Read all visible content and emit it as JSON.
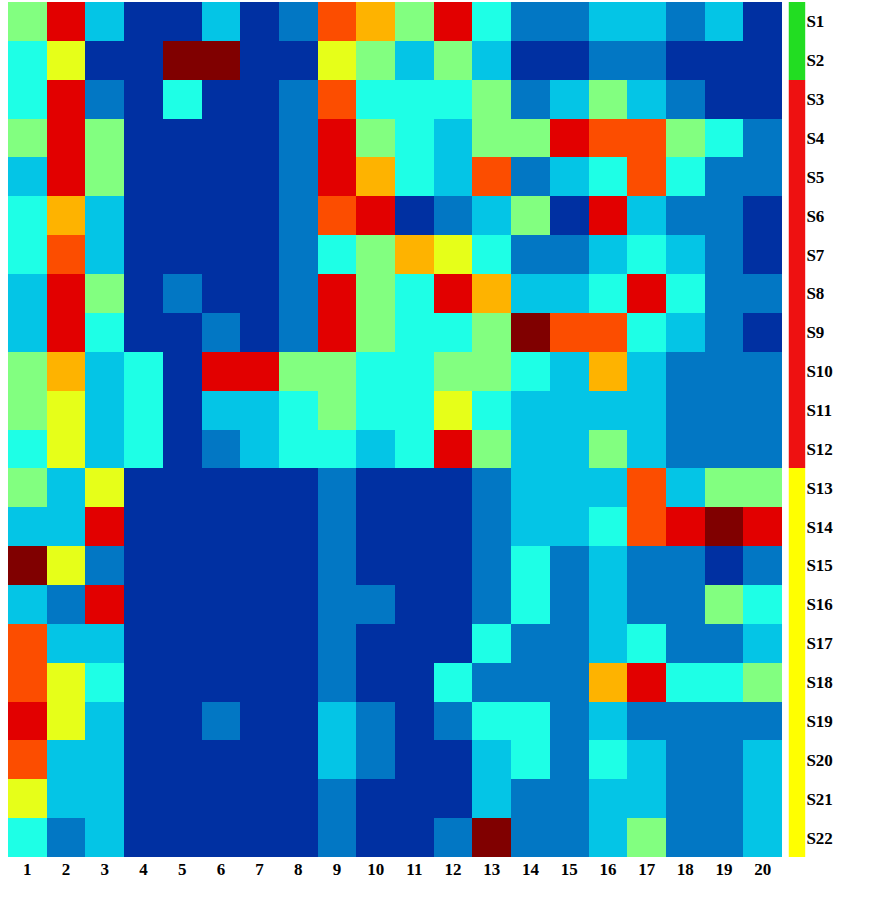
{
  "chart_data": {
    "type": "heatmap",
    "color": "Jet",
    "grid": false,
    "columns": [
      1,
      2,
      3,
      4,
      5,
      6,
      7,
      8,
      9,
      10,
      11,
      12,
      13,
      14,
      15,
      16,
      17,
      18,
      19,
      20
    ],
    "rows": [
      "S1",
      "S2",
      "S3",
      "S4",
      "S5",
      "S6",
      "S7",
      "S8",
      "S9",
      "S10",
      "S11",
      "S12",
      "S13",
      "S14",
      "S15",
      "S16",
      "S17",
      "S18",
      "S19",
      "S20",
      "S21",
      "S22"
    ],
    "row_colors": [
      "#22dd22",
      "#22dd22",
      "#ee1111",
      "#ee1111",
      "#ee1111",
      "#ee1111",
      "#ee1111",
      "#ee1111",
      "#ee1111",
      "#ee1111",
      "#ee1111",
      "#ee1111",
      "#ffff00",
      "#ffff00",
      "#ffff00",
      "#ffff00",
      "#ffff00",
      "#ffff00",
      "#ffff00",
      "#ffff00",
      "#ffff00",
      "#ffff00"
    ],
    "zlim": [
      0,
      10
    ],
    "cells": [
      [
        5,
        9,
        3,
        1,
        1,
        3,
        1,
        2,
        8,
        7,
        5,
        9,
        4,
        2,
        2,
        3,
        3,
        2,
        3,
        1
      ],
      [
        4,
        6,
        1,
        1,
        10,
        10,
        1,
        1,
        6,
        5,
        3,
        5,
        3,
        1,
        1,
        2,
        2,
        1,
        1,
        1
      ],
      [
        4,
        9,
        2,
        1,
        4,
        1,
        1,
        2,
        8,
        4,
        4,
        4,
        5,
        2,
        3,
        5,
        3,
        2,
        1,
        1
      ],
      [
        5,
        9,
        5,
        1,
        1,
        1,
        1,
        2,
        9,
        5,
        4,
        3,
        5,
        5,
        9,
        8,
        8,
        5,
        4,
        2
      ],
      [
        3,
        9,
        5,
        1,
        1,
        1,
        1,
        2,
        9,
        7,
        4,
        3,
        8,
        2,
        3,
        4,
        8,
        4,
        2,
        2
      ],
      [
        4,
        7,
        3,
        1,
        1,
        1,
        1,
        2,
        8,
        9,
        1,
        2,
        3,
        5,
        1,
        9,
        3,
        2,
        2,
        1
      ],
      [
        4,
        8,
        3,
        1,
        1,
        1,
        1,
        2,
        4,
        5,
        7,
        6,
        4,
        2,
        2,
        3,
        4,
        3,
        2,
        1
      ],
      [
        3,
        9,
        5,
        1,
        2,
        1,
        1,
        2,
        9,
        5,
        4,
        9,
        7,
        3,
        3,
        4,
        9,
        4,
        2,
        2
      ],
      [
        3,
        9,
        4,
        1,
        1,
        2,
        1,
        2,
        9,
        5,
        4,
        4,
        5,
        10,
        8,
        8,
        4,
        3,
        2,
        1
      ],
      [
        5,
        7,
        3,
        4,
        1,
        9,
        9,
        5,
        5,
        4,
        4,
        5,
        5,
        4,
        3,
        7,
        3,
        2,
        2,
        2
      ],
      [
        5,
        6,
        3,
        4,
        1,
        3,
        3,
        4,
        5,
        4,
        4,
        6,
        4,
        3,
        3,
        3,
        3,
        2,
        2,
        2
      ],
      [
        4,
        6,
        3,
        4,
        1,
        2,
        3,
        4,
        4,
        3,
        4,
        9,
        5,
        3,
        3,
        5,
        3,
        2,
        2,
        2
      ],
      [
        5,
        3,
        6,
        1,
        1,
        1,
        1,
        1,
        2,
        1,
        1,
        1,
        2,
        3,
        3,
        3,
        8,
        3,
        5,
        5
      ],
      [
        3,
        3,
        9,
        1,
        1,
        1,
        1,
        1,
        2,
        1,
        1,
        1,
        2,
        3,
        3,
        4,
        8,
        9,
        10,
        9
      ],
      [
        10,
        6,
        2,
        1,
        1,
        1,
        1,
        1,
        2,
        1,
        1,
        1,
        2,
        4,
        2,
        3,
        2,
        2,
        1,
        2
      ],
      [
        3,
        2,
        9,
        1,
        1,
        1,
        1,
        1,
        2,
        2,
        1,
        1,
        2,
        4,
        2,
        3,
        2,
        2,
        5,
        4
      ],
      [
        8,
        3,
        3,
        1,
        1,
        1,
        1,
        1,
        2,
        1,
        1,
        1,
        4,
        2,
        2,
        3,
        4,
        2,
        2,
        3
      ],
      [
        8,
        6,
        4,
        1,
        1,
        1,
        1,
        1,
        2,
        1,
        1,
        4,
        2,
        2,
        2,
        7,
        9,
        4,
        4,
        5
      ],
      [
        9,
        6,
        3,
        1,
        1,
        2,
        1,
        1,
        3,
        2,
        1,
        2,
        4,
        4,
        2,
        3,
        2,
        2,
        2,
        2
      ],
      [
        8,
        3,
        3,
        1,
        1,
        1,
        1,
        1,
        3,
        2,
        1,
        1,
        3,
        4,
        2,
        4,
        3,
        2,
        2,
        3
      ],
      [
        6,
        3,
        3,
        1,
        1,
        1,
        1,
        1,
        2,
        1,
        1,
        1,
        3,
        2,
        2,
        3,
        3,
        2,
        2,
        3
      ],
      [
        4,
        2,
        3,
        1,
        1,
        1,
        1,
        1,
        2,
        1,
        1,
        2,
        10,
        2,
        2,
        3,
        5,
        2,
        2,
        3
      ]
    ]
  }
}
